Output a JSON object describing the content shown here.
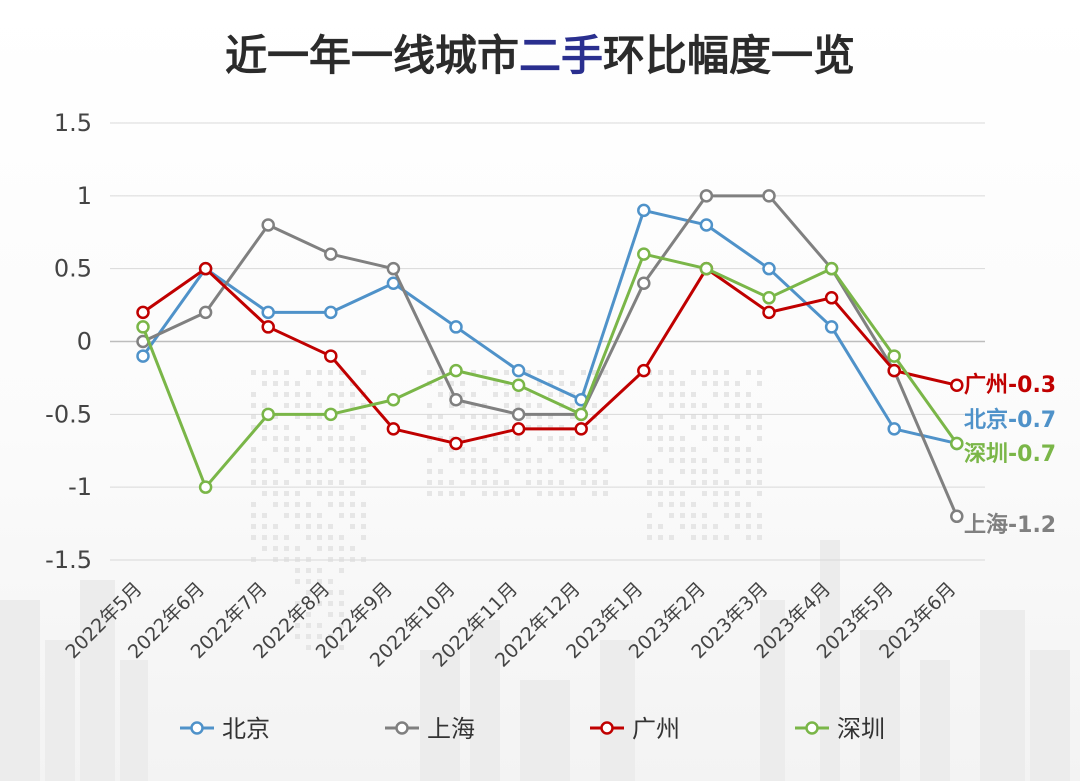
{
  "chart_data": {
    "type": "line",
    "title": {
      "prefix": "近一年一线城市",
      "accent": "二手",
      "suffix": "环比幅度一览",
      "accent_color": "#2a2f8f"
    },
    "categories": [
      "2022年5月",
      "2022年6月",
      "2022年7月",
      "2022年8月",
      "2022年9月",
      "2022年10月",
      "2022年11月",
      "2022年12月",
      "2023年1月",
      "2023年2月",
      "2023年3月",
      "2023年4月",
      "2023年5月",
      "2023年6月"
    ],
    "ylim": [
      -1.5,
      1.5
    ],
    "yticks": [
      "1.5",
      "1",
      "0.5",
      "0",
      "-0.5",
      "-1",
      "-1.5"
    ],
    "grid": true,
    "legend_position": "bottom",
    "series": [
      {
        "name": "北京",
        "color": "#4f92c9",
        "values": [
          -0.1,
          0.5,
          0.2,
          0.2,
          0.4,
          0.1,
          -0.2,
          -0.4,
          0.9,
          0.8,
          0.5,
          0.1,
          -0.6,
          -0.7
        ],
        "end_label": "北京-0.7"
      },
      {
        "name": "上海",
        "color": "#808080",
        "values": [
          0,
          0.2,
          0.8,
          0.6,
          0.5,
          -0.4,
          -0.5,
          -0.5,
          0.4,
          1.0,
          1.0,
          0.5,
          -0.2,
          -1.2
        ],
        "end_label": "上海-1.2"
      },
      {
        "name": "广州",
        "color": "#c00000",
        "values": [
          0.2,
          0.5,
          0.1,
          -0.1,
          -0.6,
          -0.7,
          -0.6,
          -0.6,
          -0.2,
          0.5,
          0.2,
          0.3,
          -0.2,
          -0.3
        ],
        "end_label": "广州-0.3"
      },
      {
        "name": "深圳",
        "color": "#7ab648",
        "values": [
          0.1,
          -1.0,
          -0.5,
          -0.5,
          -0.4,
          -0.2,
          -0.3,
          -0.5,
          0.6,
          0.5,
          0.3,
          0.5,
          -0.1,
          -0.7
        ],
        "end_label": "深圳-0.7"
      }
    ]
  }
}
